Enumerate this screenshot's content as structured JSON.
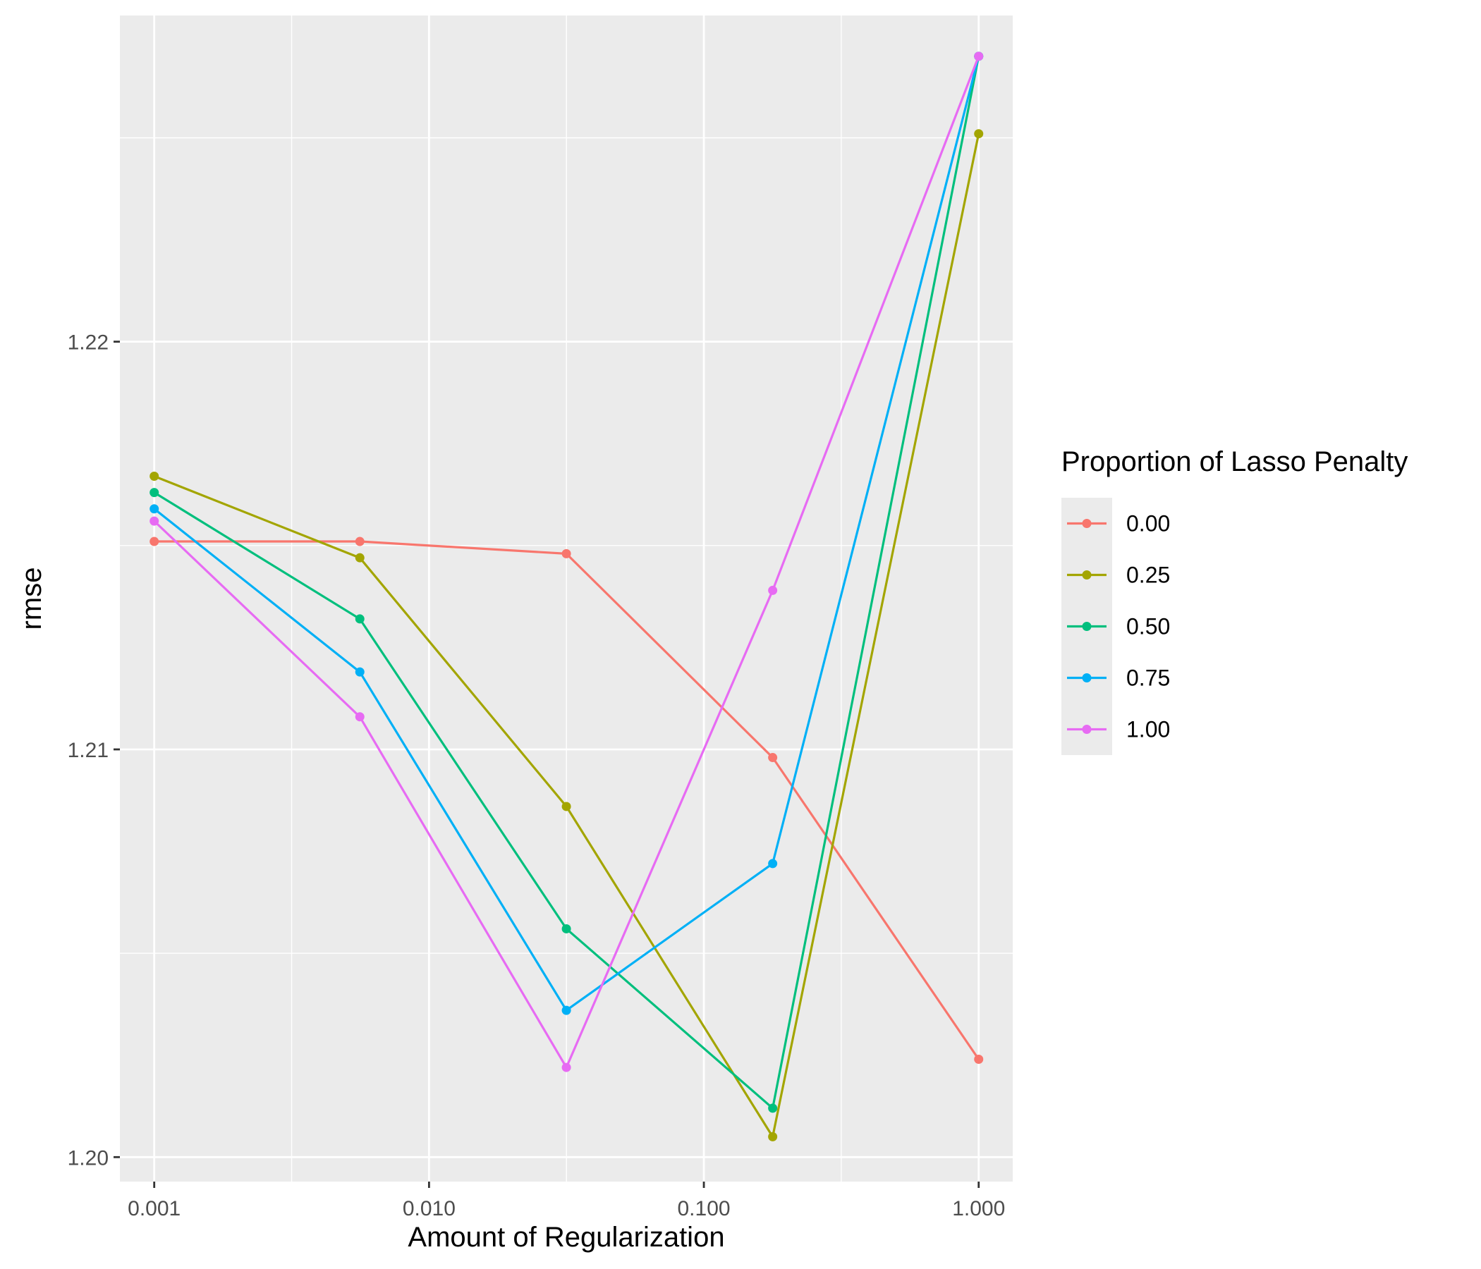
{
  "chart_data": {
    "type": "line",
    "xlabel": "Amount of Regularization",
    "ylabel": "rmse",
    "x_scale": "log10",
    "x": [
      0.001,
      0.0056,
      0.0316,
      0.178,
      1.0
    ],
    "xticks": [
      0.001,
      0.01,
      0.1,
      1.0
    ],
    "xtick_labels": [
      "0.001",
      "0.010",
      "0.100",
      "1.000"
    ],
    "xlim": [
      0.00075,
      1.33
    ],
    "yticks": [
      1.2,
      1.21,
      1.22
    ],
    "ytick_labels": [
      "1.20",
      "1.21",
      "1.22"
    ],
    "ylim": [
      1.1994,
      1.228
    ],
    "grid": true,
    "legend": {
      "title": "Proportion of Lasso Penalty",
      "position": "right"
    },
    "series": [
      {
        "name": "0.00",
        "color": "#F8766D",
        "values": [
          1.2151,
          1.2151,
          1.2148,
          1.2098,
          1.2024
        ]
      },
      {
        "name": "0.25",
        "color": "#A3A500",
        "values": [
          1.2167,
          1.2147,
          1.2086,
          1.2005,
          1.2251
        ]
      },
      {
        "name": "0.50",
        "color": "#00BF7D",
        "values": [
          1.2163,
          1.2132,
          1.2056,
          1.2012,
          1.227
        ]
      },
      {
        "name": "0.75",
        "color": "#00B0F6",
        "values": [
          1.2159,
          1.2119,
          1.2036,
          1.2072,
          1.227
        ]
      },
      {
        "name": "1.00",
        "color": "#E76BF3",
        "values": [
          1.2156,
          1.2108,
          1.2022,
          1.2139,
          1.227
        ]
      }
    ]
  }
}
